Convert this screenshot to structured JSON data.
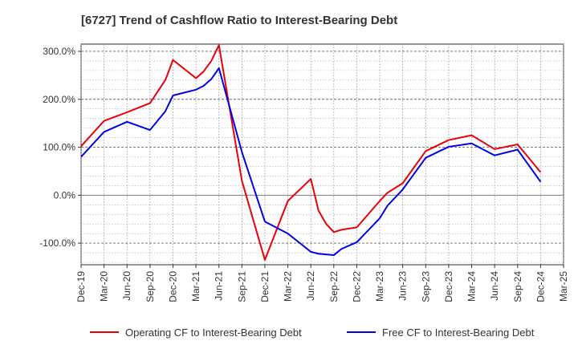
{
  "chart_data": {
    "type": "line",
    "title": "[6727]  Trend of Cashflow Ratio to Interest-Bearing Debt",
    "xlabel": "",
    "ylabel": "",
    "x_ticks": [
      "Dec-19",
      "Mar-20",
      "Jun-20",
      "Sep-20",
      "Dec-20",
      "Mar-21",
      "Jun-21",
      "Sep-21",
      "Dec-21",
      "Mar-22",
      "Jun-22",
      "Sep-22",
      "Dec-22",
      "Mar-23",
      "Jun-23",
      "Sep-23",
      "Dec-23",
      "Mar-24",
      "Jun-24",
      "Sep-24",
      "Dec-24",
      "Mar-25"
    ],
    "y_ticks": [
      "300.0%",
      "200.0%",
      "100.0%",
      "0.0%",
      "-100.0%"
    ],
    "y_tick_values": [
      300,
      200,
      100,
      0,
      -100
    ],
    "ylim": [
      -145,
      315
    ],
    "grid": true,
    "legend_position": "bottom",
    "series": [
      {
        "name": "Operating CF to Interest-Bearing Debt",
        "color": "#e8000b",
        "points": [
          [
            "Dec-19",
            102
          ],
          [
            "Mar-20",
            155
          ],
          [
            "Jun-20",
            173
          ],
          [
            "Sep-20",
            192
          ],
          [
            "Nov-20",
            240
          ],
          [
            "Dec-20",
            282
          ],
          [
            "Mar-21",
            244
          ],
          [
            "Apr-21",
            258
          ],
          [
            "May-21",
            280
          ],
          [
            "Jun-21",
            313
          ],
          [
            "Sep-21",
            30
          ],
          [
            "Dec-21",
            -135
          ],
          [
            "Mar-22",
            -12
          ],
          [
            "Jun-22",
            34
          ],
          [
            "Jul-22",
            -32
          ],
          [
            "Aug-22",
            -60
          ],
          [
            "Sep-22",
            -77
          ],
          [
            "Oct-22",
            -72
          ],
          [
            "Dec-22",
            -67
          ],
          [
            "Mar-23",
            -12
          ],
          [
            "Apr-23",
            5
          ],
          [
            "Jun-23",
            25
          ],
          [
            "Sep-23",
            92
          ],
          [
            "Dec-23",
            115
          ],
          [
            "Mar-24",
            125
          ],
          [
            "Jun-24",
            96
          ],
          [
            "Sep-24",
            106
          ],
          [
            "Dec-24",
            48
          ]
        ]
      },
      {
        "name": "Free CF to Interest-Bearing Debt",
        "color": "#0000e6",
        "points": [
          [
            "Dec-19",
            80
          ],
          [
            "Mar-20",
            132
          ],
          [
            "Jun-20",
            153
          ],
          [
            "Sep-20",
            136
          ],
          [
            "Nov-20",
            175
          ],
          [
            "Dec-20",
            208
          ],
          [
            "Mar-21",
            220
          ],
          [
            "Apr-21",
            228
          ],
          [
            "May-21",
            242
          ],
          [
            "Jun-21",
            265
          ],
          [
            "Sep-21",
            90
          ],
          [
            "Dec-21",
            -55
          ],
          [
            "Mar-22",
            -80
          ],
          [
            "Jun-22",
            -118
          ],
          [
            "Jul-22",
            -122
          ],
          [
            "Sep-22",
            -125
          ],
          [
            "Oct-22",
            -112
          ],
          [
            "Dec-22",
            -98
          ],
          [
            "Mar-23",
            -48
          ],
          [
            "Apr-23",
            -22
          ],
          [
            "Jun-23",
            12
          ],
          [
            "Sep-23",
            78
          ],
          [
            "Dec-23",
            101
          ],
          [
            "Mar-24",
            108
          ],
          [
            "Jun-24",
            83
          ],
          [
            "Sep-24",
            95
          ],
          [
            "Dec-24",
            28
          ]
        ]
      }
    ]
  }
}
